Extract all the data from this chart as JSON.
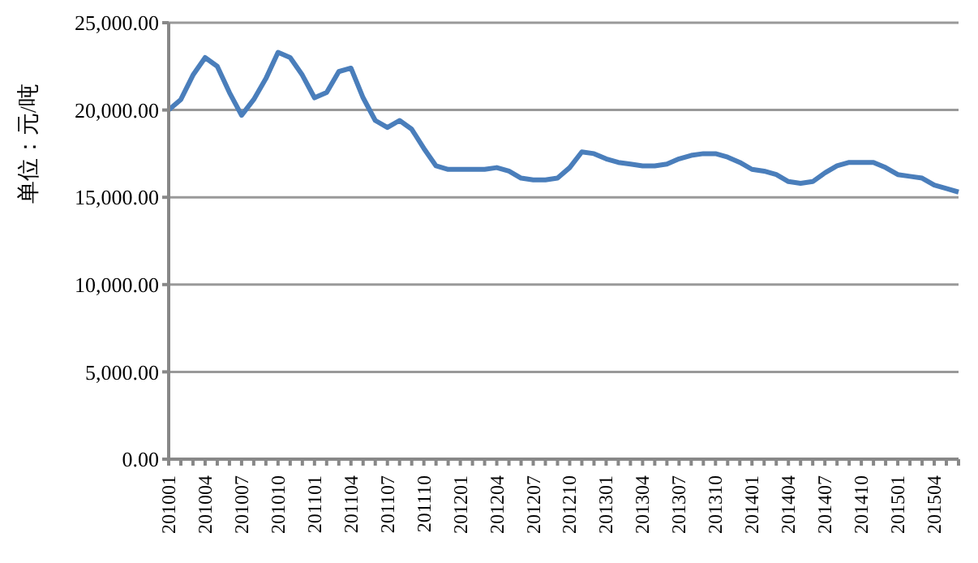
{
  "chart_data": {
    "type": "line",
    "ylabel": "单位：元/吨",
    "categories": [
      "201001",
      null,
      null,
      "201004",
      null,
      null,
      "201007",
      null,
      null,
      "201010",
      null,
      null,
      "201101",
      null,
      null,
      "201104",
      null,
      null,
      "201107",
      null,
      null,
      "201110",
      null,
      null,
      "201201",
      null,
      null,
      "201204",
      null,
      null,
      "201207",
      null,
      null,
      "201210",
      null,
      null,
      "201301",
      null,
      null,
      "201304",
      null,
      null,
      "201307",
      null,
      null,
      "201310",
      null,
      null,
      "201401",
      null,
      null,
      "201404",
      null,
      null,
      "201407",
      null,
      null,
      "201410",
      null,
      null,
      "201501",
      null,
      null,
      "201504",
      null,
      null
    ],
    "series": [
      {
        "color": "#4a7ebb",
        "values": [
          20000,
          20600,
          22000,
          23000,
          22500,
          21000,
          19700,
          20600,
          21800,
          23300,
          23000,
          22000,
          20700,
          21000,
          22200,
          22400,
          20700,
          19400,
          19000,
          19400,
          18900,
          17800,
          16800,
          16600,
          16600,
          16600,
          16600,
          16700,
          16500,
          16100,
          16000,
          16000,
          16100,
          16700,
          17600,
          17500,
          17200,
          17000,
          16900,
          16800,
          16800,
          16900,
          17200,
          17400,
          17500,
          17500,
          17300,
          17000,
          16600,
          16500,
          16300,
          15900,
          15800,
          15900,
          16400,
          16800,
          17000,
          17000,
          17000,
          16700,
          16300,
          16200,
          16100,
          15700,
          15500,
          15300
        ]
      }
    ],
    "ylim": [
      0,
      25000
    ],
    "yticks": [
      {
        "value": 0,
        "label": "0.00"
      },
      {
        "value": 5000,
        "label": "5,000.00"
      },
      {
        "value": 10000,
        "label": "10,000.00"
      },
      {
        "value": 15000,
        "label": "15,000.00"
      },
      {
        "value": 20000,
        "label": "20,000.00"
      },
      {
        "value": 25000,
        "label": "25,000.00"
      }
    ],
    "grid": "y",
    "marker": "none",
    "line_style": "solid"
  }
}
